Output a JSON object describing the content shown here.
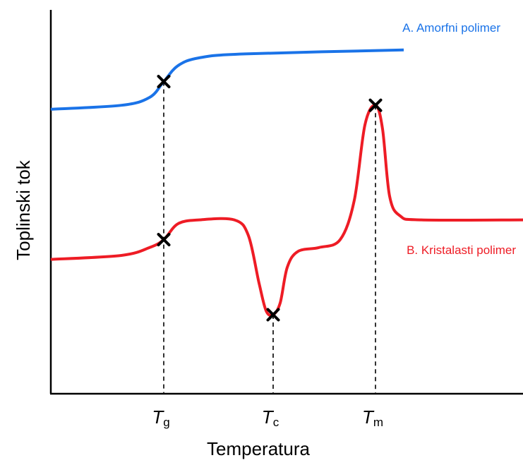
{
  "chart_data": {
    "type": "line",
    "title": "",
    "xlabel": "Temperatura",
    "ylabel": "Toplinski tok",
    "x_ticks": [
      {
        "main": "T",
        "sub": "g"
      },
      {
        "main": "T",
        "sub": "c"
      },
      {
        "main": "T",
        "sub": "m"
      }
    ],
    "series": [
      {
        "name": "A. Amorfni polimer",
        "color": "#1a73e8",
        "points": [
          [
            0,
            0.72
          ],
          [
            0.2,
            0.73
          ],
          [
            0.28,
            0.75
          ],
          [
            0.32,
            0.79
          ],
          [
            0.36,
            0.83
          ],
          [
            0.42,
            0.85
          ],
          [
            0.55,
            0.86
          ],
          [
            1.0,
            0.87
          ]
        ],
        "markers": [
          {
            "x": 0.32,
            "y": 0.79,
            "label": "g"
          }
        ]
      },
      {
        "name": "B. Kristalasti polimer",
        "color": "#ee1c25",
        "points": [
          [
            0,
            0.34
          ],
          [
            0.2,
            0.35
          ],
          [
            0.28,
            0.37
          ],
          [
            0.32,
            0.39
          ],
          [
            0.36,
            0.43
          ],
          [
            0.42,
            0.44
          ],
          [
            0.52,
            0.44
          ],
          [
            0.56,
            0.4
          ],
          [
            0.59,
            0.28
          ],
          [
            0.61,
            0.21
          ],
          [
            0.63,
            0.2
          ],
          [
            0.65,
            0.23
          ],
          [
            0.67,
            0.32
          ],
          [
            0.7,
            0.36
          ],
          [
            0.76,
            0.37
          ],
          [
            0.82,
            0.39
          ],
          [
            0.86,
            0.49
          ],
          [
            0.89,
            0.68
          ],
          [
            0.92,
            0.73
          ],
          [
            0.94,
            0.67
          ],
          [
            0.96,
            0.5
          ],
          [
            0.99,
            0.45
          ],
          [
            1.05,
            0.44
          ],
          [
            1.6,
            0.44
          ]
        ],
        "markers": [
          {
            "x": 0.32,
            "y": 0.39,
            "label": "g"
          },
          {
            "x": 0.63,
            "y": 0.2,
            "label": "c"
          },
          {
            "x": 0.92,
            "y": 0.73,
            "label": "m"
          }
        ]
      }
    ],
    "transitions": [
      {
        "id": "g",
        "x": 0.32
      },
      {
        "id": "c",
        "x": 0.63
      },
      {
        "id": "m",
        "x": 0.92
      }
    ],
    "grid": false,
    "legend_position": "inline"
  }
}
